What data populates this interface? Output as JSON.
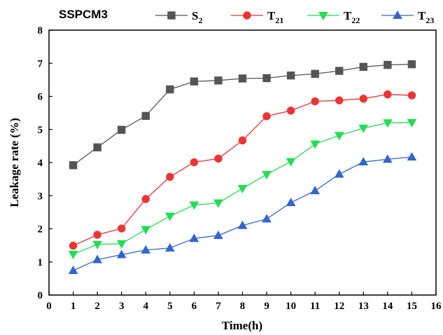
{
  "chart_data": {
    "type": "line",
    "panel_label": "SSPCM3",
    "xlabel": "Time(h)",
    "ylabel": "Leakage rate (%)",
    "xlim": [
      0,
      16
    ],
    "ylim": [
      0,
      8
    ],
    "x_ticks": [
      "0",
      "1",
      "2",
      "3",
      "4",
      "5",
      "6",
      "7",
      "8",
      "9",
      "10",
      "11",
      "12",
      "13",
      "14",
      "15",
      "16"
    ],
    "y_ticks": [
      "0",
      "1",
      "2",
      "3",
      "4",
      "5",
      "6",
      "7",
      "8"
    ],
    "legend_position": "top",
    "x": [
      1,
      2,
      3,
      4,
      5,
      6,
      7,
      8,
      9,
      10,
      11,
      12,
      13,
      14,
      15
    ],
    "series": [
      {
        "name": "S2",
        "label_base": "S",
        "label_sub": "2",
        "color": "#555555",
        "marker": "square",
        "values": [
          3.92,
          4.46,
          4.99,
          5.41,
          6.21,
          6.45,
          6.48,
          6.54,
          6.55,
          6.63,
          6.68,
          6.77,
          6.89,
          6.95,
          6.97
        ]
      },
      {
        "name": "T21",
        "label_base": "T",
        "label_sub": "21",
        "color": "#ee3333",
        "marker": "circle",
        "values": [
          1.49,
          1.82,
          2.01,
          2.9,
          3.57,
          4.01,
          4.12,
          4.67,
          5.4,
          5.57,
          5.85,
          5.88,
          5.93,
          6.06,
          6.03
        ]
      },
      {
        "name": "T22",
        "label_base": "T",
        "label_sub": "22",
        "color": "#22dd55",
        "marker": "triangle-down",
        "values": [
          1.23,
          1.53,
          1.55,
          1.98,
          2.38,
          2.72,
          2.78,
          3.22,
          3.64,
          4.03,
          4.56,
          4.82,
          5.04,
          5.2,
          5.21
        ]
      },
      {
        "name": "T23",
        "label_base": "T",
        "label_sub": "23",
        "color": "#3366cc",
        "marker": "triangle-up",
        "values": [
          0.74,
          1.07,
          1.22,
          1.36,
          1.42,
          1.71,
          1.8,
          2.1,
          2.3,
          2.79,
          3.15,
          3.65,
          4.02,
          4.1,
          4.17
        ]
      }
    ]
  }
}
